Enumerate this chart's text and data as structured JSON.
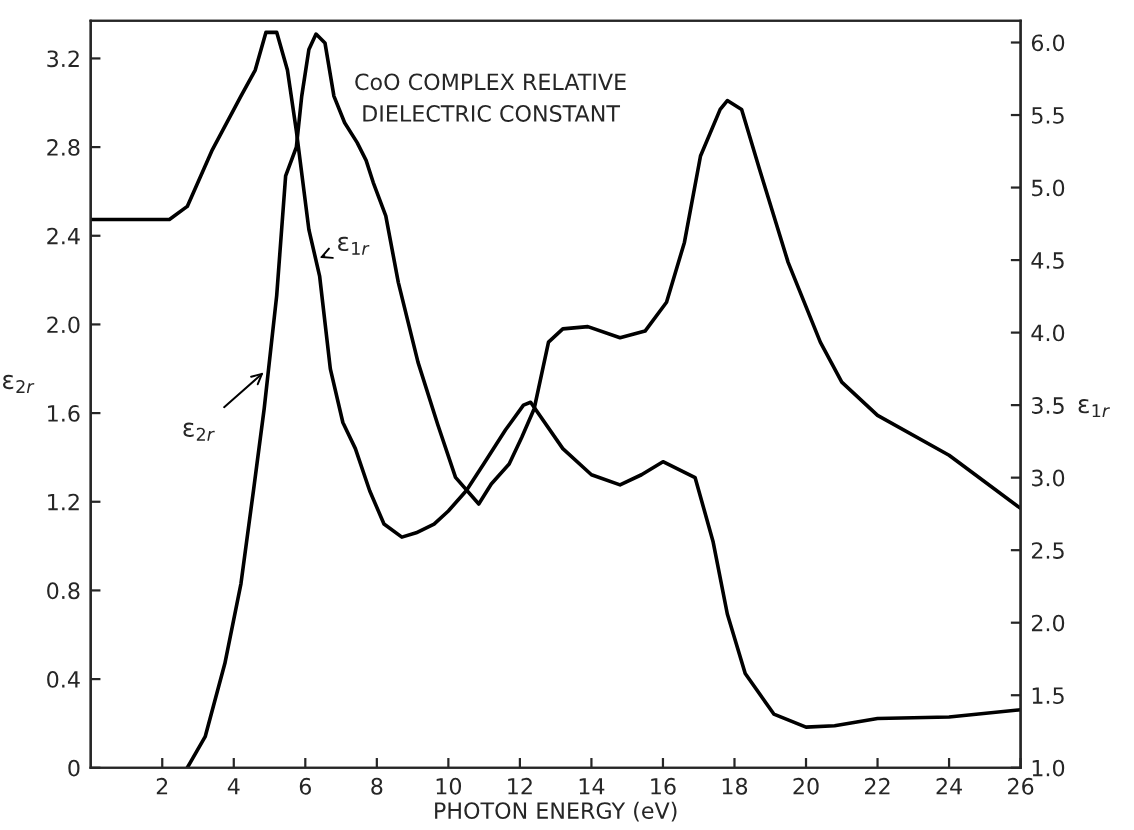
{
  "chart_data": {
    "type": "line",
    "title": "CoO COMPLEX RELATIVE\nDIELECTRIC CONSTANT",
    "xlabel": "PHOTON ENERGY (eV)",
    "ylabel": "ε$_{2r}$",
    "y2label": "ε$_{1r}$",
    "xlim": [
      0,
      26
    ],
    "xticks": [
      2,
      4,
      6,
      8,
      10,
      12,
      14,
      16,
      18,
      20,
      22,
      24,
      26
    ],
    "ylim": [
      0,
      3.37
    ],
    "yticks": [
      0,
      0.4,
      0.8,
      1.2,
      1.6,
      {
        "value": 2.0,
        "label": "2.0"
      },
      2.4,
      2.8,
      3.2
    ],
    "y2lim": [
      1.0,
      6.15
    ],
    "y2ticks": [
      {
        "value": 1.0,
        "label": "1.0"
      },
      1.5,
      {
        "value": 2.0,
        "label": "2.0"
      },
      2.5,
      {
        "value": 3.0,
        "label": "3.0"
      },
      3.5,
      {
        "value": 4.0,
        "label": "4.0"
      },
      4.5,
      {
        "value": 5.0,
        "label": "5.0"
      },
      5.5,
      {
        "value": 6.0,
        "label": "6.0"
      }
    ],
    "grid": false,
    "legend": false,
    "marker": "none",
    "line_style": "solid",
    "series": [
      {
        "color": "#000000",
        "x": [
          2.7,
          3.2,
          3.75,
          4.2,
          4.55,
          4.85,
          5.2,
          5.45,
          5.75,
          5.9,
          6.1,
          6.3,
          6.55,
          6.8,
          7.1,
          7.45,
          7.7,
          7.9,
          8.25,
          8.6,
          9.15,
          9.7,
          10.2,
          10.85,
          11.2,
          11.7,
          12.05,
          12.4,
          12.8,
          13.2,
          13.9,
          14.8,
          15.5,
          16.1,
          16.6,
          17.05,
          17.6,
          17.8,
          18.2,
          18.7,
          19.5,
          20.4,
          21,
          22,
          24,
          26
        ],
        "values": [
          0,
          0.14,
          0.47,
          0.83,
          1.25,
          1.62,
          2.13,
          2.67,
          2.8,
          3.03,
          3.24,
          3.31,
          3.27,
          3.03,
          2.91,
          2.82,
          2.74,
          2.64,
          2.49,
          2.19,
          1.83,
          1.55,
          1.31,
          1.19,
          1.28,
          1.37,
          1.49,
          1.62,
          1.92,
          1.98,
          1.99,
          1.94,
          1.97,
          2.1,
          2.37,
          2.76,
          2.97,
          3.01,
          2.97,
          2.7,
          2.28,
          1.92,
          1.74,
          1.59,
          1.41,
          1.17
        ]
      },
      {
        "color": "#000000",
        "axis": "y2",
        "x": [
          0,
          2.2,
          2.7,
          3.4,
          4.2,
          4.6,
          4.9,
          5.2,
          5.5,
          5.75,
          6.1,
          6.4,
          6.7,
          7.05,
          7.4,
          7.8,
          8.2,
          8.7,
          9.1,
          9.6,
          10,
          10.5,
          11,
          11.6,
          12.1,
          12.3,
          13.2,
          14,
          14.8,
          15.4,
          16,
          16.9,
          17.4,
          17.8,
          18.3,
          19.1,
          20,
          20.8,
          22,
          24,
          26
        ],
        "values": [
          4.78,
          4.78,
          4.87,
          5.26,
          5.63,
          5.81,
          6.07,
          6.07,
          5.81,
          5.39,
          4.71,
          4.39,
          3.75,
          3.38,
          3.2,
          2.91,
          2.68,
          2.59,
          2.62,
          2.68,
          2.77,
          2.91,
          3.1,
          3.33,
          3.5,
          3.52,
          3.2,
          3.02,
          2.95,
          3.02,
          3.11,
          3.0,
          2.56,
          2.06,
          1.65,
          1.37,
          1.28,
          1.29,
          1.34,
          1.35,
          1.4
        ]
      }
    ],
    "annotations": [
      {
        "text": "ε$_{2r}$",
        "x": 4.95,
        "y": 1.8
      },
      {
        "text": "ε$_{1r}$",
        "x": 6.4,
        "y": 2.3
      }
    ]
  }
}
